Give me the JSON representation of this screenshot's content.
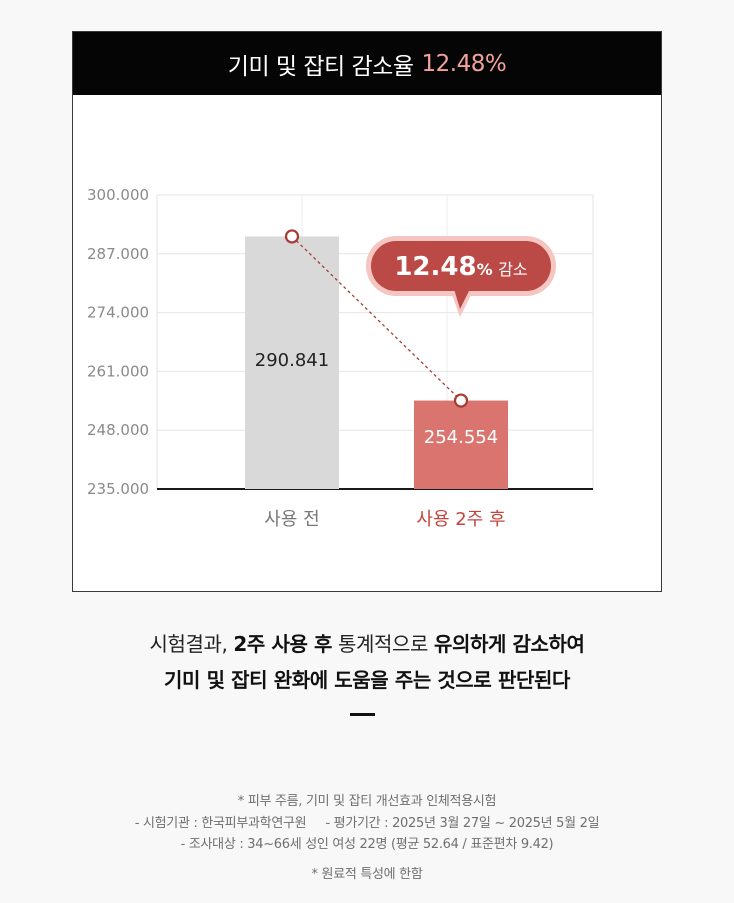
{
  "header": {
    "title": "기미 및 잡티 감소율",
    "rate": "12.48%"
  },
  "chart_data": {
    "type": "bar",
    "categories": [
      "사용 전",
      "사용 2주 후"
    ],
    "values": [
      290.841,
      254.554
    ],
    "value_labels": [
      "290.841",
      "254.554"
    ],
    "ylim": [
      235,
      300
    ],
    "yticks": [
      "235.000",
      "248.000",
      "261.000",
      "274.000",
      "287.000",
      "300.000"
    ],
    "ytick_values": [
      235,
      248,
      261,
      274,
      287,
      300
    ],
    "grid": true,
    "callout": {
      "value": "12.48",
      "unit": "%",
      "text": "감소"
    },
    "colors": {
      "before_bar": "#d9d9d9",
      "after_bar": "#d9756e",
      "callout": "#bb4a46",
      "callout_glow": "#f5c5c1",
      "marker": "#a73c37",
      "after_label": "#c3433d",
      "before_label": "#777777"
    }
  },
  "summary": {
    "line1_a": "시험결과, ",
    "line1_b": "2주 사용 후",
    "line1_c": " 통계적으로 ",
    "line1_d": "유의하게 감소하여",
    "line2": "기미 및 잡티 완화에 도움을 주는 것으로 판단된다"
  },
  "notes": {
    "line1": "* 피부 주름, 기미 및 잡티 개선효과 인체적용시험",
    "line2": "- 시험기관 : 한국피부과학연구원     - 평가기간 : 2025년 3월 27일 ~ 2025년 5월 2일",
    "line3": "- 조사대상 : 34~66세 성인 여성 22명 (평균 52.64 / 표준편차 9.42)",
    "line4": "* 원료적 특성에 한함"
  }
}
